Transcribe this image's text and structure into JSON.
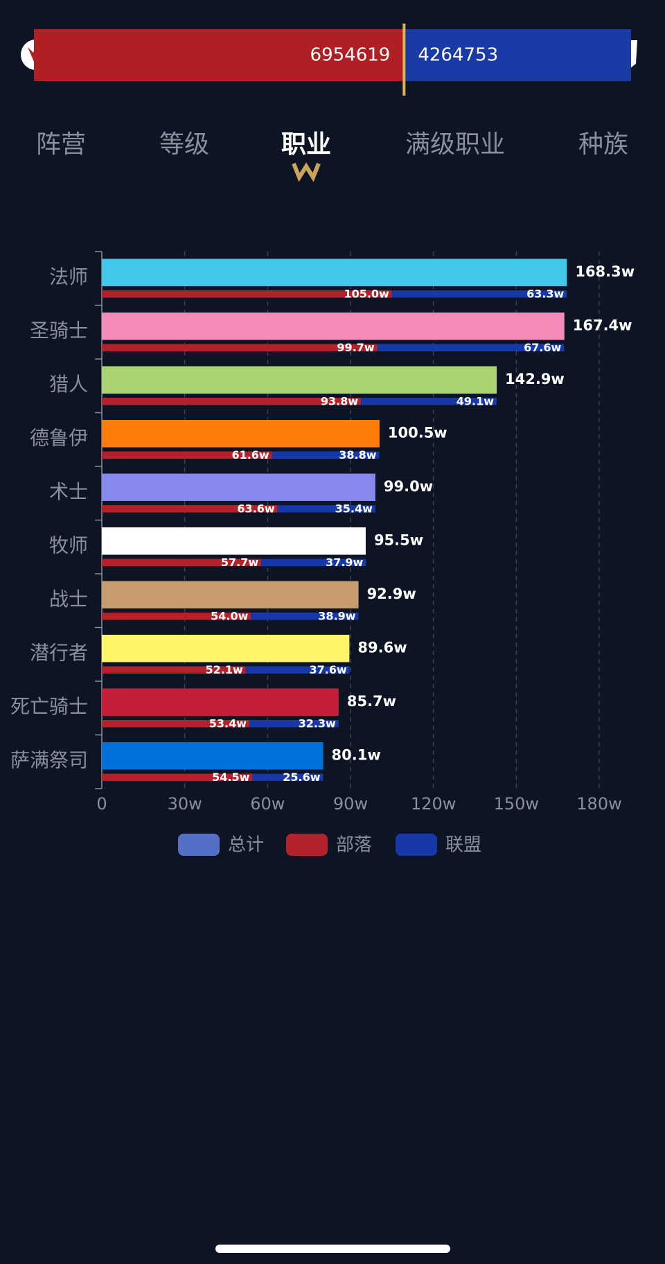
{
  "header": {
    "horde": 6954619,
    "alliance": 4264753
  },
  "tabs": [
    "阵营",
    "等级",
    "职业",
    "满级职业",
    "种族"
  ],
  "active_tab": 2,
  "chart_data": {
    "type": "bar",
    "orientation": "horizontal",
    "categories": [
      "法师",
      "圣骑士",
      "猎人",
      "德鲁伊",
      "术士",
      "牧师",
      "战士",
      "潜行者",
      "死亡骑士",
      "萨满祭司"
    ],
    "series": [
      {
        "name": "总计",
        "color": "#5470c6",
        "colors": [
          "#40c7eb",
          "#f48cba",
          "#aad372",
          "#ff7c0a",
          "#8788ee",
          "#ffffff",
          "#c69b6d",
          "#fff468",
          "#c41e3a",
          "#0070dd"
        ],
        "values": [
          168.3,
          167.4,
          142.9,
          100.5,
          99.0,
          95.5,
          92.9,
          89.6,
          85.7,
          80.1
        ],
        "value_labels": [
          "168.3w",
          "167.4w",
          "142.9w",
          "100.5w",
          "99.0w",
          "95.5w",
          "92.9w",
          "89.6w",
          "85.7w",
          "80.1w"
        ]
      },
      {
        "name": "部落",
        "color": "#b5212a",
        "values": [
          105.0,
          99.7,
          93.8,
          61.6,
          63.6,
          57.7,
          54.0,
          52.1,
          53.4,
          54.5
        ],
        "value_labels": [
          "105.0w",
          "99.7w",
          "93.8w",
          "61.6w",
          "63.6w",
          "57.7w",
          "54.0w",
          "52.1w",
          "53.4w",
          "54.5w"
        ]
      },
      {
        "name": "联盟",
        "color": "#1638a8",
        "values": [
          63.3,
          67.6,
          49.1,
          38.8,
          35.4,
          37.9,
          38.9,
          37.6,
          32.3,
          25.6
        ],
        "value_labels": [
          "63.3w",
          "67.6w",
          "49.1w",
          "38.8w",
          "35.4w",
          "37.9w",
          "38.9w",
          "37.6w",
          "32.3w",
          "25.6w"
        ]
      }
    ],
    "xlim": [
      0,
      180
    ],
    "xticks": [
      0,
      {
        "value": 30,
        "label": "30w"
      },
      {
        "value": 60,
        "label": "60w"
      },
      {
        "value": 90,
        "label": "90w"
      },
      {
        "value": 120,
        "label": "120w"
      },
      {
        "value": 150,
        "label": "150w"
      },
      {
        "value": 180,
        "label": "180w"
      }
    ],
    "grid": true
  }
}
